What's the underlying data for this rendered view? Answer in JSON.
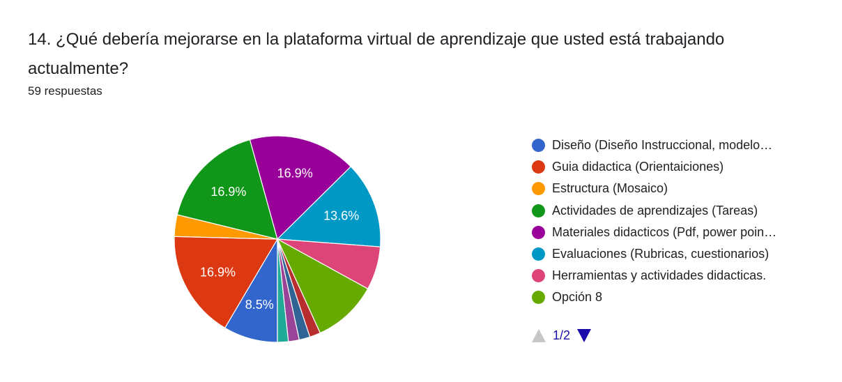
{
  "question": {
    "title": "14. ¿Qué debería mejorarse en la plataforma virtual de aprendizaje que usted está trabajando actualmente?",
    "responses": "59 respuestas"
  },
  "chart_data": {
    "type": "pie",
    "start_angle_deg": 90,
    "direction": "clockwise",
    "slices": [
      {
        "label": "Diseño (Diseño Instruccional, modelo…",
        "value": 8.5,
        "color": "#3366cc",
        "data_label": "8.5%"
      },
      {
        "label": "Guia didactica (Orientaiciones)",
        "value": 16.9,
        "color": "#dc3912",
        "data_label": "16.9%"
      },
      {
        "label": "Estructura (Mosaico)",
        "value": 3.4,
        "color": "#ff9900",
        "data_label": ""
      },
      {
        "label": "Actividades de aprendizajes (Tareas)",
        "value": 16.9,
        "color": "#109618",
        "data_label": "16.9%"
      },
      {
        "label": "Materiales didacticos (Pdf, power poin…",
        "value": 16.9,
        "color": "#990099",
        "data_label": "16.9%"
      },
      {
        "label": "Evaluaciones (Rubricas, cuestionarios)",
        "value": 13.6,
        "color": "#0099c6",
        "data_label": "13.6%"
      },
      {
        "label": "Herramientas y actividades didacticas.",
        "value": 6.8,
        "color": "#dd4477",
        "data_label": ""
      },
      {
        "label": "Opción 8",
        "value": 10.2,
        "color": "#66aa00",
        "data_label": ""
      },
      {
        "label": "",
        "value": 1.7,
        "color": "#b82e2e",
        "data_label": ""
      },
      {
        "label": "",
        "value": 1.7,
        "color": "#316395",
        "data_label": ""
      },
      {
        "label": "",
        "value": 1.7,
        "color": "#994499",
        "data_label": ""
      },
      {
        "label": "",
        "value": 1.7,
        "color": "#22aa99",
        "data_label": ""
      }
    ]
  },
  "legend": {
    "items": [
      {
        "label": "Diseño (Diseño Instruccional, modelo…",
        "color": "#3366cc"
      },
      {
        "label": "Guia didactica (Orientaiciones)",
        "color": "#dc3912"
      },
      {
        "label": "Estructura (Mosaico)",
        "color": "#ff9900"
      },
      {
        "label": "Actividades de aprendizajes (Tareas)",
        "color": "#109618"
      },
      {
        "label": "Materiales didacticos (Pdf, power poin…",
        "color": "#990099"
      },
      {
        "label": "Evaluaciones (Rubricas, cuestionarios)",
        "color": "#0099c6"
      },
      {
        "label": "Herramientas y actividades didacticas.",
        "color": "#dd4477"
      },
      {
        "label": "Opción 8",
        "color": "#66aa00"
      }
    ],
    "page": "1/2"
  }
}
